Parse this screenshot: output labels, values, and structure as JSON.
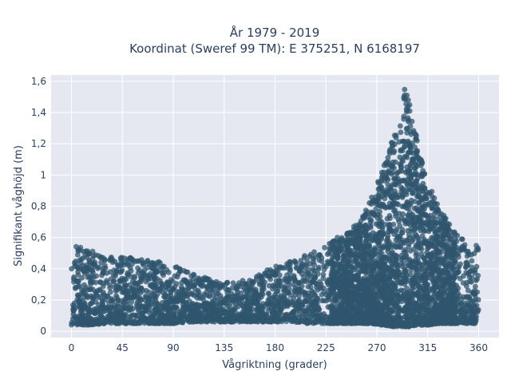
{
  "chart_data": {
    "type": "scatter",
    "title_line1": "År 1979 - 2019",
    "title_line2": "Koordinat (Sweref 99 TM): E 375251, N 6168197",
    "xlabel": "Vågriktning (grader)",
    "ylabel": "Signifikant våghöjd (m)",
    "xlim": [
      -18,
      378
    ],
    "ylim": [
      -0.04,
      1.64
    ],
    "x_ticks": [
      0,
      45,
      90,
      135,
      180,
      225,
      270,
      315,
      360
    ],
    "x_tick_labels": [
      "0",
      "45",
      "90",
      "135",
      "180",
      "225",
      "270",
      "315",
      "360"
    ],
    "y_ticks": [
      0,
      0.2,
      0.4,
      0.6,
      0.8,
      1.0,
      1.2,
      1.4,
      1.6
    ],
    "y_tick_labels": [
      "0",
      "0,2",
      "0,4",
      "0,6",
      "0,8",
      "1",
      "1,2",
      "1,4",
      "1,6"
    ],
    "grid": true,
    "marker_color": "#2f556d",
    "plot_bg": "#e5e8f0",
    "envelope": {
      "x": [
        0,
        15,
        30,
        45,
        60,
        75,
        90,
        105,
        120,
        135,
        150,
        165,
        180,
        195,
        210,
        225,
        240,
        255,
        265,
        275,
        285,
        290,
        295,
        300,
        305,
        315,
        325,
        335,
        345,
        355,
        360
      ],
      "y_low": [
        0.04,
        0.04,
        0.05,
        0.05,
        0.05,
        0.05,
        0.05,
        0.06,
        0.06,
        0.06,
        0.06,
        0.06,
        0.06,
        0.06,
        0.05,
        0.05,
        0.05,
        0.05,
        0.05,
        0.04,
        0.03,
        0.03,
        0.03,
        0.03,
        0.04,
        0.04,
        0.05,
        0.05,
        0.05,
        0.05,
        0.05
      ],
      "y_high": [
        0.56,
        0.52,
        0.49,
        0.48,
        0.47,
        0.45,
        0.42,
        0.38,
        0.34,
        0.31,
        0.33,
        0.36,
        0.42,
        0.45,
        0.5,
        0.56,
        0.62,
        0.7,
        0.85,
        1.05,
        1.25,
        1.4,
        1.58,
        1.42,
        1.25,
        0.95,
        0.8,
        0.68,
        0.6,
        0.57,
        0.54
      ]
    }
  }
}
